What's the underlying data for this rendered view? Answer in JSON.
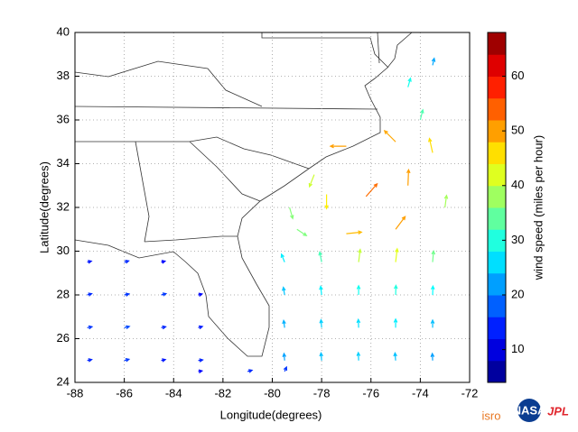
{
  "map": {
    "xlabel": "Longitude(degrees)",
    "ylabel": "Latitude(degrees)",
    "xlim": [
      -88,
      -72
    ],
    "ylim": [
      24,
      40
    ],
    "xticks": [
      -88,
      -86,
      -84,
      -82,
      -80,
      -78,
      -76,
      -74,
      -72
    ],
    "yticks": [
      24,
      26,
      28,
      30,
      32,
      34,
      36,
      38,
      40
    ],
    "grid": true,
    "colorbar": {
      "label": "wind speed (miles per hour)",
      "lim": [
        4,
        68
      ],
      "ticks": [
        10,
        20,
        30,
        40,
        50,
        60
      ],
      "bands": 16
    },
    "vectors": [
      [
        -87.5,
        25,
        14,
        3
      ],
      [
        -86,
        25,
        15,
        4
      ],
      [
        -84.5,
        25,
        13,
        3
      ],
      [
        -83,
        25,
        14,
        2
      ],
      [
        -87.5,
        26.5,
        15,
        3
      ],
      [
        -86,
        26.5,
        16,
        4
      ],
      [
        -84.5,
        26.5,
        14,
        3
      ],
      [
        -83,
        26.5,
        13,
        4
      ],
      [
        -87.5,
        28,
        14,
        4
      ],
      [
        -86,
        28,
        15,
        3
      ],
      [
        -84.5,
        28,
        15,
        4
      ],
      [
        -83,
        28,
        12,
        3
      ],
      [
        -87.5,
        29.5,
        13,
        3
      ],
      [
        -86,
        29.5,
        14,
        4
      ],
      [
        -84.5,
        29.5,
        12,
        3
      ],
      [
        -83,
        24.5,
        12,
        2
      ],
      [
        -81,
        24.5,
        14,
        4
      ],
      [
        -79.5,
        24.5,
        6,
        14
      ],
      [
        -79.5,
        25,
        -2,
        22
      ],
      [
        -78,
        25,
        -2,
        24
      ],
      [
        -76.5,
        25,
        -1,
        25
      ],
      [
        -75,
        25,
        -2,
        24
      ],
      [
        -73.5,
        25,
        -1,
        22
      ],
      [
        -79.5,
        26.5,
        -3,
        23
      ],
      [
        -78,
        26.5,
        -2,
        25
      ],
      [
        -76.5,
        26.5,
        -1,
        26
      ],
      [
        -75,
        26.5,
        0,
        27
      ],
      [
        -73.5,
        26.5,
        0,
        24
      ],
      [
        -79.5,
        28,
        -4,
        24
      ],
      [
        -78,
        28,
        -3,
        27
      ],
      [
        -76.5,
        28,
        0,
        29
      ],
      [
        -75,
        28,
        1,
        30
      ],
      [
        -73.5,
        28,
        1,
        28
      ],
      [
        -79.5,
        29.5,
        -10,
        25
      ],
      [
        -78,
        29.5,
        -6,
        32
      ],
      [
        -76.5,
        29.5,
        5,
        40
      ],
      [
        -75,
        29.5,
        5,
        42
      ],
      [
        -73.5,
        29.5,
        3,
        35
      ],
      [
        -79,
        31,
        30,
        -20
      ],
      [
        -77,
        30.8,
        48,
        5
      ],
      [
        -75,
        31,
        30,
        40
      ],
      [
        -74.5,
        33,
        2,
        50
      ],
      [
        -75,
        35,
        -35,
        35
      ],
      [
        -77,
        34.8,
        -50,
        0
      ],
      [
        -78.3,
        33.5,
        -15,
        -38
      ],
      [
        -79.3,
        32,
        10,
        -35
      ],
      [
        -76.2,
        32.5,
        35,
        40
      ],
      [
        -77.8,
        32.6,
        0,
        -45
      ],
      [
        -73,
        32,
        5,
        38
      ],
      [
        -73.5,
        34.5,
        -10,
        45
      ],
      [
        -74,
        36,
        8,
        32
      ],
      [
        -74.5,
        37.5,
        8,
        28
      ],
      [
        -73.5,
        38.5,
        5,
        22
      ]
    ],
    "logos": [
      "isro",
      "NASA",
      "JPL"
    ]
  }
}
